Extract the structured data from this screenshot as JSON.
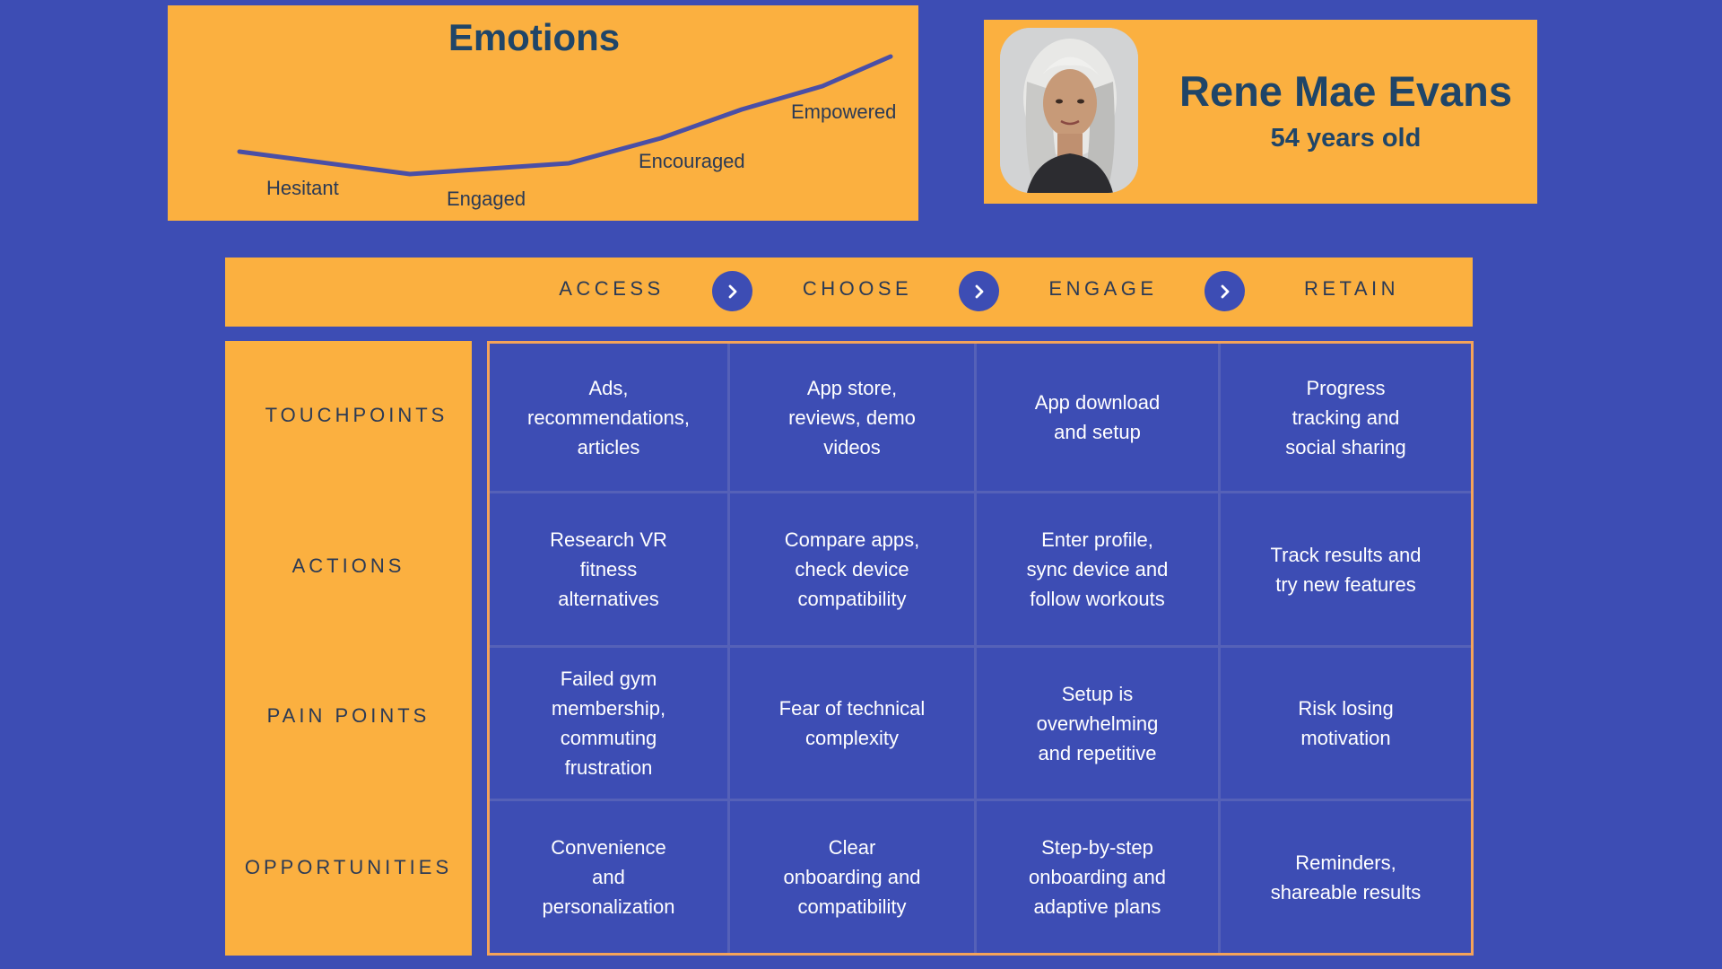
{
  "emotions": {
    "title": "Emotions",
    "labels": [
      "Hesitant",
      "Engaged",
      "Encouraged",
      "Empowered"
    ],
    "line_color": "#4a4fa6"
  },
  "profile": {
    "name": "Rene Mae Evans",
    "age": "54 years old",
    "avatar_icon": "person-photo-icon"
  },
  "stages": [
    "ACCESS",
    "CHOOSE",
    "ENGAGE",
    "RETAIN"
  ],
  "rows": [
    "TOUCHPOINTS",
    "ACTIONS",
    "PAIN POINTS",
    "OPPORTUNITIES"
  ],
  "grid": [
    [
      "Ads,\nrecommendations,\narticles",
      "App store,\nreviews, demo\nvideos",
      "App download\nand setup",
      "Progress\ntracking and\nsocial sharing"
    ],
    [
      "Research VR\nfitness\nalternatives",
      "Compare apps,\ncheck device\ncompatibility",
      "Enter profile,\nsync device and\nfollow workouts",
      "Track results and\ntry new features"
    ],
    [
      "Failed gym\nmembership,\ncommuting\nfrustration",
      "Fear of technical\ncomplexity",
      "Setup is\noverwhelming\nand repetitive",
      "Risk losing\nmotivation"
    ],
    [
      "Convenience\nand\npersonalization",
      "Clear\nonboarding and\ncompatibility",
      "Step-by-step\nonboarding and\nadaptive plans",
      "Reminders,\nshareable results"
    ]
  ],
  "colors": {
    "background": "#3d4db4",
    "panel": "#fbb040",
    "heading": "#1f4568",
    "cell_text": "#ffffff"
  }
}
